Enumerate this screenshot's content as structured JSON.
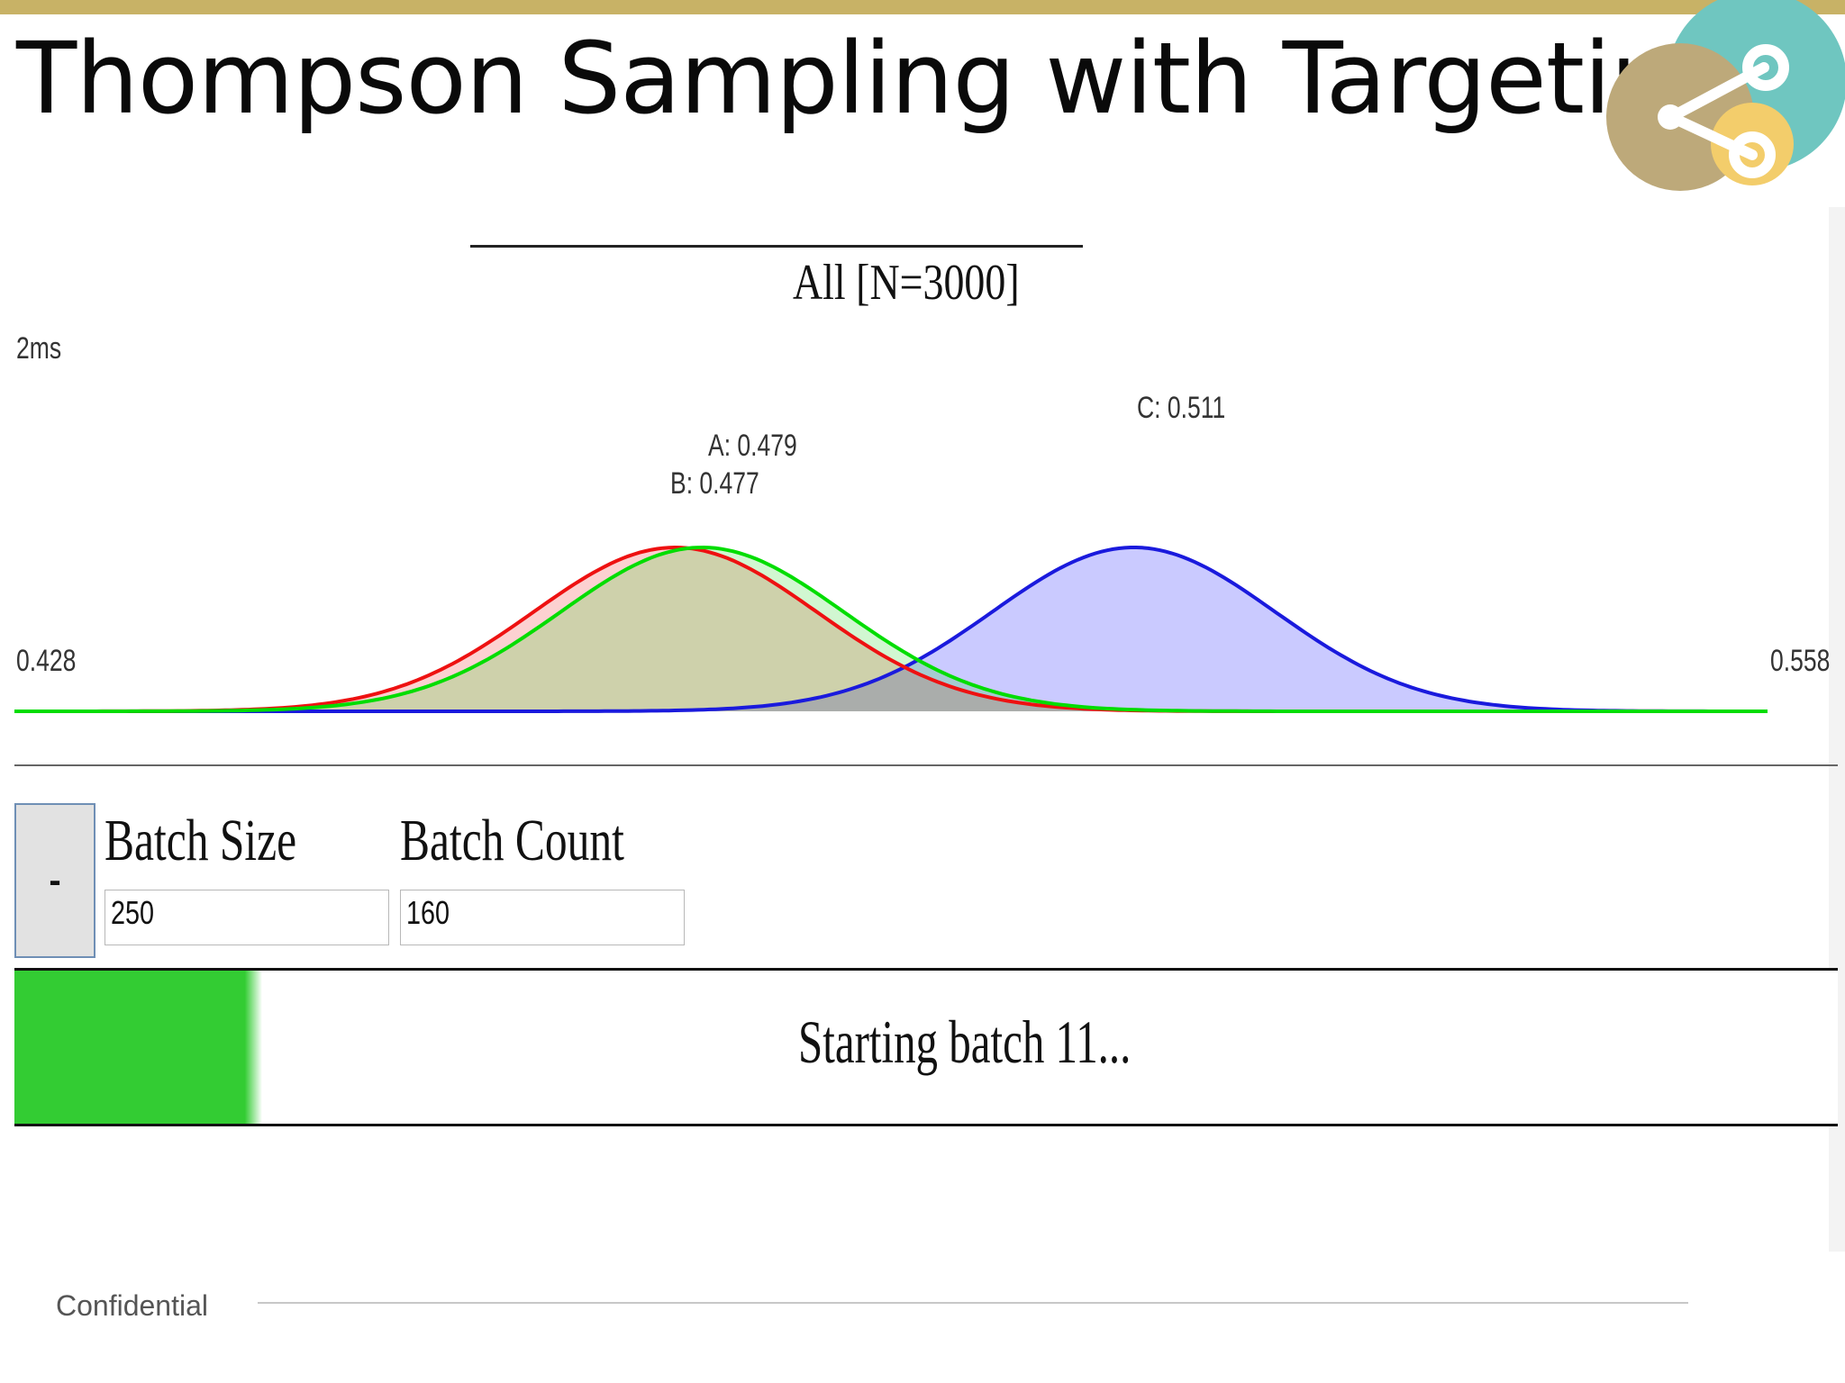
{
  "slide": {
    "title": "Thompson Sampling with Targeting",
    "footer": "Confidential",
    "accent": "#c8b266"
  },
  "chart": {
    "title": "All [N=3000]",
    "y_label": "2ms",
    "x_min_label": "0.428",
    "x_max_label": "0.558",
    "annotations": {
      "a": "A: 0.479",
      "b": "B: 0.477",
      "c": "C: 0.511"
    }
  },
  "controls": {
    "minus_label": "-",
    "batch_size_label": "Batch Size",
    "batch_size_value": "250",
    "batch_count_label": "Batch Count",
    "batch_count_value": "160"
  },
  "progress": {
    "fraction": 0.127,
    "status": "Starting batch 11...",
    "color": "#33cc33"
  },
  "chart_data": {
    "type": "area",
    "xlim": [
      0.428,
      0.558
    ],
    "x_unit_label": "",
    "series": [
      {
        "name": "A",
        "mean": 0.479,
        "sd": 0.0105,
        "stroke": "#00dd00",
        "fill": "rgba(0,210,0,0.18)"
      },
      {
        "name": "B",
        "mean": 0.477,
        "sd": 0.0105,
        "stroke": "#ee1111",
        "fill": "rgba(240,0,0,0.18)"
      },
      {
        "name": "C",
        "mean": 0.511,
        "sd": 0.0105,
        "stroke": "#1a1add",
        "fill": "rgba(80,80,255,0.30)"
      }
    ],
    "labels": [
      "A: 0.479",
      "B: 0.477",
      "C: 0.511"
    ],
    "grid": false,
    "legend": "none"
  }
}
